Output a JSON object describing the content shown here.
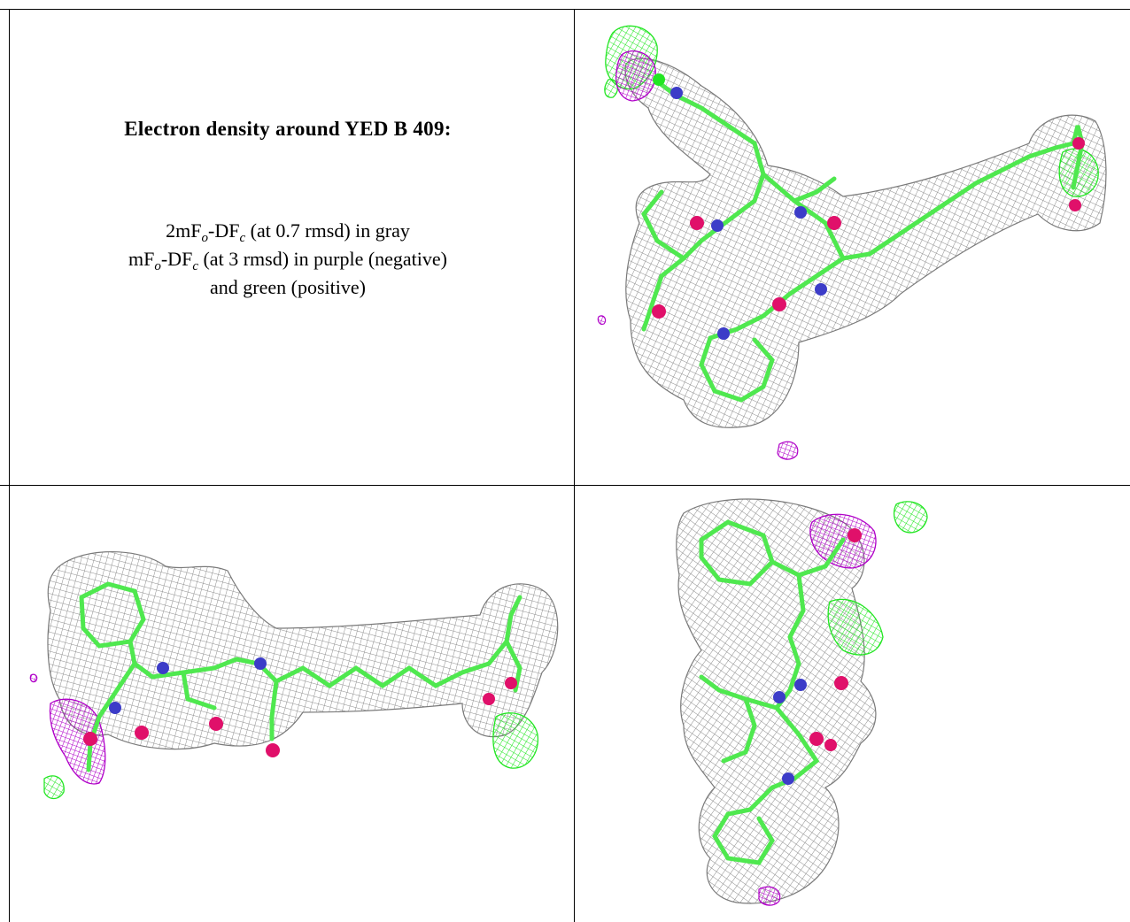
{
  "figure": {
    "title": "Electron density around YED B 409:",
    "legend": {
      "line1": {
        "prefix": "2mF",
        "sub1": "o",
        "mid": "-DF",
        "sub2": "c",
        "suffix": " (at 0.7 rmsd) in gray"
      },
      "line2": {
        "prefix": "mF",
        "sub1": "o",
        "mid": "-DF",
        "sub2": "c",
        "suffix": " (at 3 rmsd) in purple (negative)"
      },
      "line3": "and green (positive)"
    }
  },
  "colors": {
    "mesh_2fofc": "#8c8c8c",
    "fofc_negative": "#b000c8",
    "fofc_positive": "#22e622",
    "carbon": "#4fe84f",
    "nitrogen": "#3c3cc8",
    "oxygen": "#e0106a"
  }
}
